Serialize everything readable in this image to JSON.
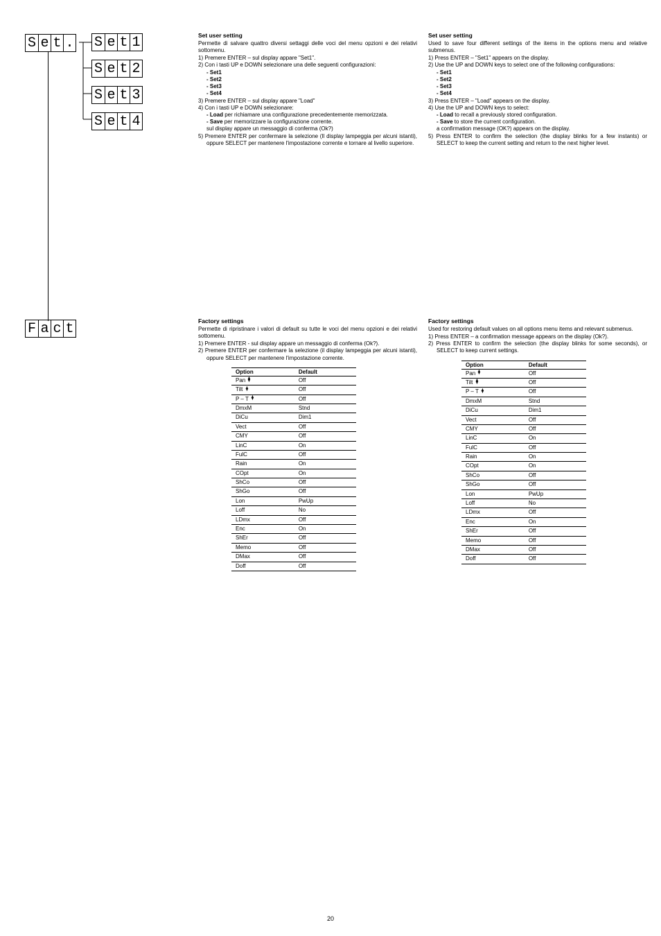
{
  "lcd": {
    "set": [
      "S",
      "e",
      "t",
      "."
    ],
    "set1": [
      "S",
      "e",
      "t",
      "1"
    ],
    "set2": [
      "S",
      "e",
      "t",
      "2"
    ],
    "set3": [
      "S",
      "e",
      "t",
      "3"
    ],
    "set4": [
      "S",
      "e",
      "t",
      "4"
    ],
    "fact": [
      "F",
      "a",
      "c",
      "t"
    ]
  },
  "left": {
    "setTitle": "Set user setting",
    "setIntro": "Permette di salvare quattro diversi settaggi delle voci del menu opzioni e dei relativi sottomenu.",
    "l1": "1)  Premere ENTER – sul display appare \"Set1\".",
    "l2": "2)  Con i tasti UP e DOWN selezionare una delle seguenti configurazioni:",
    "cfg1": "- Set1",
    "cfg2": "- Set2",
    "cfg3": "- Set3",
    "cfg4": "- Set4",
    "l3": "3)  Premere ENTER – sul display appare \"Load\"",
    "l4": "4)  Con i tasti UP e DOWN selezionare:",
    "l4a_bold": "- Load",
    "l4a_rest": " per richiamare una configurazione precedentemente memorizzata.",
    "l4b_bold": "- Save",
    "l4b_rest": " per memorizzare la configurazione corrente.",
    "l4c": "sul display appare un messaggio di conferma (Ok?)",
    "l5": "5)  Premere ENTER per confermare la selezione (Il display lampeggia per alcuni istanti), oppure SELECT per mantenere l'impostazione corrente e tornare al livello superiore.",
    "factTitle": "Factory settings",
    "factIntro": "Permette di ripristinare i valori di default su tutte le voci del menu opzioni e dei relativi sottomenu.",
    "f1": "1) Premere ENTER - sul display appare un messaggio di conferma (Ok?).",
    "f2": "2) Premere ENTER per confermare la selezione (il display lampeggia per alcuni istanti), oppure SELECT per mantenere l'impostazione corrente."
  },
  "right": {
    "setTitle": "Set user setting",
    "setIntro": "Used to save four different settings  of the items in the options menu and relative submenus.",
    "l1": "1)  Press ENTER – \"Set1\" appears on the display.",
    "l2": "2)  Use the UP and DOWN keys to select one of the following configurations:",
    "cfg1": "- Set1",
    "cfg2": "- Set2",
    "cfg3": "- Set3",
    "cfg4": "- Set4",
    "l3": "3)  Press ENTER – \"Load\" appears on the display.",
    "l4": "4)  Use the UP and DOWN keys to select:",
    "l4a_bold": "- Load",
    "l4a_rest": " to recall a previously stored configuration.",
    "l4b_bold": "- Save",
    "l4b_rest": " to store the current configuration.",
    "l4c": "a confirmation message (OK?) appears on the display.",
    "l5": "5) Press ENTER to confirm the selection (the display blinks for a few instants) or SELECT to keep the current setting and return to the next higher level.",
    "factTitle": "Factory settings",
    "factIntro": "Used for restoring default values on all options menu items and relevant submenus.",
    "f1": "1) Press ENTER – a confirmation message appears on the display (Ok?).",
    "f2": "2) Press ENTER to confirm the selection (the display blinks for some seconds), or SELECT to keep current settings."
  },
  "table": {
    "headOption": "Option",
    "headDefault": "Default",
    "rows": [
      {
        "o": "Pan ",
        "arrow": true,
        "d": "Off"
      },
      {
        "o": "Tilt ",
        "arrow": true,
        "d": "Off"
      },
      {
        "o": "P – T  ",
        "arrow": true,
        "d": "Off"
      },
      {
        "o": "DmxM",
        "d": "Stnd"
      },
      {
        "o": "DiCu",
        "d": "Dim1"
      },
      {
        "o": "Vect",
        "d": "Off"
      },
      {
        "o": "CMY",
        "d": "Off"
      },
      {
        "o": "LinC",
        "d": "On"
      },
      {
        "o": "FulC",
        "d": "Off"
      },
      {
        "o": "Rain",
        "d": "On"
      },
      {
        "o": "COpt",
        "d": "On"
      },
      {
        "o": "ShCo",
        "d": "Off"
      },
      {
        "o": "ShGo",
        "d": "Off"
      },
      {
        "o": "Lon",
        "d": "PwUp"
      },
      {
        "o": "Loff",
        "d": "No"
      },
      {
        "o": "LDmx",
        "d": "Off"
      },
      {
        "o": "Enc",
        "d": "On"
      },
      {
        "o": "ShEr",
        "d": "Off"
      },
      {
        "o": "Memo",
        "d": "Off"
      },
      {
        "o": "DMax",
        "d": "Off"
      },
      {
        "o": "Doff",
        "d": "Off"
      }
    ]
  },
  "pageNum": "20"
}
